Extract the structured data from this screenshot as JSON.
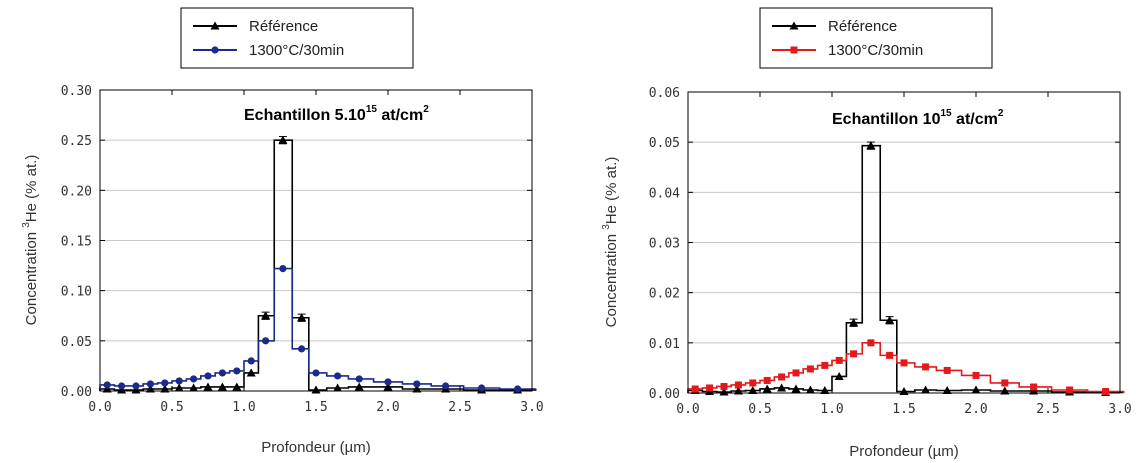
{
  "chart_data": [
    {
      "type": "line",
      "title": "Echantillon 5.10",
      "title_sup": "15",
      "title_tail": " at/cm",
      "title_sup2": "2",
      "xlabel": "Profondeur (µm)",
      "ylabel_pre": "Concentration ",
      "ylabel_sup": "3",
      "ylabel_post": "He (% at.)",
      "xlim": [
        0,
        3.0
      ],
      "ylim": [
        0,
        0.3
      ],
      "xticks": [
        "0.0",
        "0.5",
        "1.0",
        "1.5",
        "2.0",
        "2.5",
        "3.0"
      ],
      "yticks": [
        "0.00",
        "0.05",
        "0.10",
        "0.15",
        "0.20",
        "0.25",
        "0.30"
      ],
      "legend_position": "top-left-outside",
      "series": [
        {
          "name": "Référence",
          "color": "#000000",
          "marker": "triangle",
          "x": [
            0.05,
            0.15,
            0.25,
            0.35,
            0.45,
            0.55,
            0.65,
            0.75,
            0.85,
            0.95,
            1.05,
            1.15,
            1.27,
            1.4,
            1.5,
            1.65,
            1.8,
            2.0,
            2.2,
            2.4,
            2.65,
            2.9
          ],
          "y": [
            0.002,
            0.001,
            0.001,
            0.002,
            0.002,
            0.003,
            0.003,
            0.004,
            0.004,
            0.004,
            0.018,
            0.075,
            0.25,
            0.073,
            0.001,
            0.003,
            0.004,
            0.004,
            0.002,
            0.002,
            0.001,
            0.001
          ],
          "error_points": [
            1.15,
            1.27,
            1.4
          ]
        },
        {
          "name": "1300°C/30min",
          "color": "#1c2a8a",
          "marker": "circle",
          "x": [
            0.05,
            0.15,
            0.25,
            0.35,
            0.45,
            0.55,
            0.65,
            0.75,
            0.85,
            0.95,
            1.05,
            1.15,
            1.27,
            1.4,
            1.5,
            1.65,
            1.8,
            2.0,
            2.2,
            2.4,
            2.65,
            2.9
          ],
          "y": [
            0.006,
            0.005,
            0.005,
            0.007,
            0.008,
            0.01,
            0.012,
            0.015,
            0.018,
            0.02,
            0.03,
            0.05,
            0.122,
            0.042,
            0.018,
            0.015,
            0.012,
            0.009,
            0.007,
            0.005,
            0.003,
            0.002
          ]
        }
      ]
    },
    {
      "type": "line",
      "title": "Echantillon 10",
      "title_sup": "15",
      "title_tail": " at/cm",
      "title_sup2": "2",
      "xlabel": "Profondeur (µm)",
      "ylabel_pre": "Concentration ",
      "ylabel_sup": "3",
      "ylabel_post": "He (% at.)",
      "xlim": [
        0,
        3.0
      ],
      "ylim": [
        0,
        0.06
      ],
      "xticks": [
        "0.0",
        "0.5",
        "1.0",
        "1.5",
        "2.0",
        "2.5",
        "3.0"
      ],
      "yticks": [
        "0.00",
        "0.01",
        "0.02",
        "0.03",
        "0.04",
        "0.05",
        "0.06"
      ],
      "legend_position": "top-left-outside",
      "series": [
        {
          "name": "Référence",
          "color": "#000000",
          "marker": "triangle",
          "x": [
            0.05,
            0.15,
            0.25,
            0.35,
            0.45,
            0.55,
            0.65,
            0.75,
            0.85,
            0.95,
            1.05,
            1.15,
            1.27,
            1.4,
            1.5,
            1.65,
            1.8,
            2.0,
            2.2,
            2.4,
            2.65,
            2.9
          ],
          "y": [
            0.0005,
            0.0003,
            0.0002,
            0.0004,
            0.0005,
            0.0008,
            0.001,
            0.0008,
            0.0006,
            0.0005,
            0.0033,
            0.014,
            0.0493,
            0.0145,
            0.0003,
            0.0006,
            0.0005,
            0.0006,
            0.0004,
            0.0004,
            0.0002,
            0.0001
          ],
          "error_points": [
            1.15,
            1.27,
            1.4
          ]
        },
        {
          "name": "1300°C/30min",
          "color": "#e31a1c",
          "marker": "square",
          "x": [
            0.05,
            0.15,
            0.25,
            0.35,
            0.45,
            0.55,
            0.65,
            0.75,
            0.85,
            0.95,
            1.05,
            1.15,
            1.27,
            1.4,
            1.5,
            1.65,
            1.8,
            2.0,
            2.2,
            2.4,
            2.65,
            2.9
          ],
          "y": [
            0.0008,
            0.001,
            0.0013,
            0.0016,
            0.002,
            0.0025,
            0.0032,
            0.004,
            0.0048,
            0.0055,
            0.0065,
            0.0078,
            0.01,
            0.0075,
            0.006,
            0.0052,
            0.0045,
            0.0035,
            0.002,
            0.0012,
            0.0006,
            0.0003
          ]
        }
      ]
    }
  ]
}
